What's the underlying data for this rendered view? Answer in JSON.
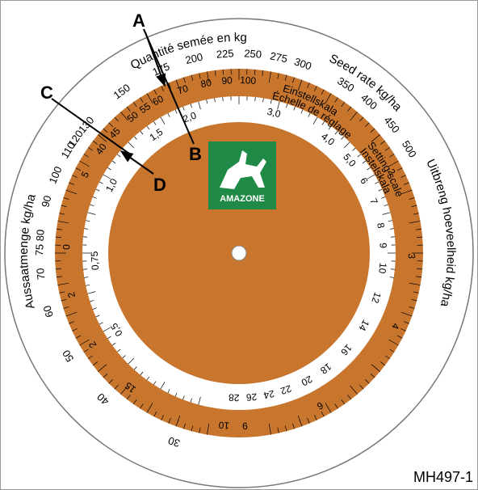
{
  "callouts": {
    "a": "A",
    "b": "B",
    "c": "C",
    "d": "D"
  },
  "figure_id": "MH497-1",
  "logo": "AMAZONE",
  "outer_scale": {
    "title_fr": "Quantité semée en  kg/ha",
    "title_en": "Seed rate  kg/ha",
    "title_nl": "Uitbreng hoeveelheid  kg/ha",
    "title_de": "Aussaatmenge  kg/ha",
    "labels": [
      "30",
      "40",
      "50",
      "60",
      "70",
      "75 80",
      "90",
      "100",
      "110",
      "120",
      "130",
      "150",
      "175",
      "200",
      "225",
      "250",
      "275",
      "300",
      "350",
      "400",
      "450",
      "500"
    ]
  },
  "setting_scale": {
    "title_de": "Einstellskala",
    "title_fr": "Échelle de réglage",
    "title_en": "Setting scale",
    "title_nl": "Instelskala",
    "labels": [
      "100",
      "90",
      "80",
      "70",
      "60",
      "55",
      "50",
      "45",
      "40",
      "5",
      "0",
      "2",
      "2",
      "15",
      "10",
      "9",
      "6",
      "4",
      "3",
      "2"
    ]
  },
  "inner_scale": {
    "labels": [
      "2,0",
      "3,0",
      "4,0",
      "5,0",
      "6",
      "7",
      "8",
      "9",
      "10",
      "12",
      "14",
      "16",
      "18",
      "20",
      "22",
      "24",
      "26",
      "28",
      "0,5",
      "0,75",
      "1,0",
      "1,5"
    ]
  }
}
